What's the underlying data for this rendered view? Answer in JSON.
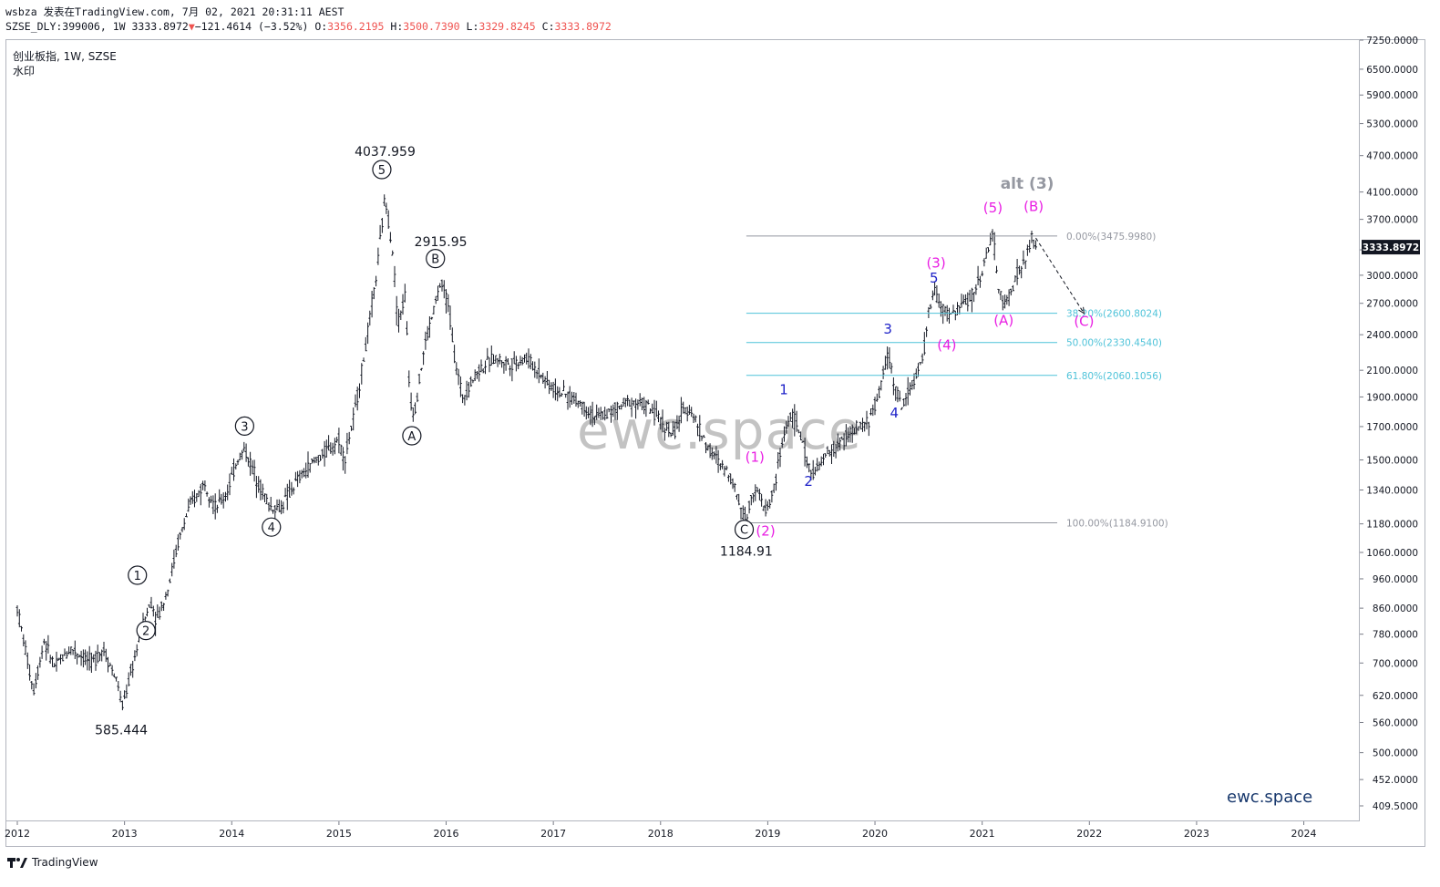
{
  "header": {
    "author": "wsbza",
    "published": "发表在TradingView.com,",
    "datetime": "7月 02, 2021 20:31:11 AEST",
    "ticker": "SZSE_DLY:399006, 1W",
    "last": "3333.8972",
    "change": "−121.4614 (−3.52%)",
    "open_label": "O:",
    "open": "3356.2195",
    "high_label": "H:",
    "high": "3500.7390",
    "low_label": "L:",
    "low": "3329.8245",
    "close_label": "C:",
    "close": "3333.8972"
  },
  "symbol": {
    "name": "创业板指, 1W, SZSE",
    "line2": "水印"
  },
  "watermark": "ewc.space",
  "corner_brand": "ewc.space",
  "footer": {
    "logo_text": "TradingView"
  },
  "colors": {
    "bars": "#131722",
    "magenta": "#e91ee3",
    "blue": "#1e22c8",
    "fib": "#4fc3d9",
    "gray": "#9598a1",
    "down": "#ef5350",
    "price_tag": "#131722"
  },
  "chart_data": {
    "type": "ohlc",
    "scale": "log",
    "title": "创业板指, 1W, SZSE",
    "ylim": [
      400,
      7600
    ],
    "y_ticks": [
      "7250.0000",
      "6500.0000",
      "5900.0000",
      "5300.0000",
      "4700.0000",
      "4100.0000",
      "3700.0000",
      "3300.0000",
      "3000.0000",
      "2700.0000",
      "2400.0000",
      "2100.0000",
      "1900.0000",
      "1700.0000",
      "1500.0000",
      "1340.0000",
      "1180.0000",
      "1060.0000",
      "960.0000",
      "860.0000",
      "780.0000",
      "700.0000",
      "620.0000",
      "560.0000",
      "500.0000",
      "452.0000",
      "409.5000"
    ],
    "y_tick_values": [
      7250,
      6500,
      5900,
      5300,
      4700,
      4100,
      3700,
      3300,
      3000,
      2700,
      2400,
      2100,
      1900,
      1700,
      1500,
      1340,
      1180,
      1060,
      960,
      860,
      780,
      700,
      620,
      560,
      500,
      452,
      409.5
    ],
    "x_ticks": [
      "2012",
      "2013",
      "2014",
      "2015",
      "2016",
      "2017",
      "2018",
      "2019",
      "2020",
      "2021",
      "2022",
      "2023",
      "2024"
    ],
    "x_tick_years": [
      2012,
      2013,
      2014,
      2015,
      2016,
      2017,
      2018,
      2019,
      2020,
      2021,
      2022,
      2023,
      2024
    ],
    "last_price": 3333.8972,
    "price_path": [
      [
        2012.0,
        860
      ],
      [
        2012.1,
        700
      ],
      [
        2012.15,
        630
      ],
      [
        2012.25,
        760
      ],
      [
        2012.35,
        690
      ],
      [
        2012.5,
        740
      ],
      [
        2012.7,
        700
      ],
      [
        2012.8,
        740
      ],
      [
        2012.95,
        640
      ],
      [
        2012.97,
        585
      ],
      [
        2013.1,
        720
      ],
      [
        2013.18,
        820
      ],
      [
        2013.25,
        880
      ],
      [
        2013.3,
        820
      ],
      [
        2013.4,
        920
      ],
      [
        2013.5,
        1100
      ],
      [
        2013.6,
        1250
      ],
      [
        2013.75,
        1380
      ],
      [
        2013.85,
        1250
      ],
      [
        2013.95,
        1320
      ],
      [
        2014.05,
        1500
      ],
      [
        2014.12,
        1560
      ],
      [
        2014.25,
        1380
      ],
      [
        2014.35,
        1260
      ],
      [
        2014.45,
        1250
      ],
      [
        2014.6,
        1380
      ],
      [
        2014.75,
        1480
      ],
      [
        2014.9,
        1560
      ],
      [
        2015.0,
        1620
      ],
      [
        2015.05,
        1500
      ],
      [
        2015.15,
        1800
      ],
      [
        2015.25,
        2300
      ],
      [
        2015.35,
        3000
      ],
      [
        2015.4,
        3600
      ],
      [
        2015.43,
        4037
      ],
      [
        2015.5,
        3300
      ],
      [
        2015.55,
        2500
      ],
      [
        2015.62,
        2800
      ],
      [
        2015.66,
        1900
      ],
      [
        2015.7,
        1780
      ],
      [
        2015.8,
        2300
      ],
      [
        2015.9,
        2700
      ],
      [
        2015.95,
        2916
      ],
      [
        2016.02,
        2700
      ],
      [
        2016.08,
        2200
      ],
      [
        2016.15,
        1900
      ],
      [
        2016.3,
        2100
      ],
      [
        2016.45,
        2200
      ],
      [
        2016.6,
        2150
      ],
      [
        2016.75,
        2200
      ],
      [
        2016.9,
        2050
      ],
      [
        2017.0,
        1960
      ],
      [
        2017.1,
        1920
      ],
      [
        2017.25,
        1860
      ],
      [
        2017.4,
        1760
      ],
      [
        2017.55,
        1800
      ],
      [
        2017.7,
        1870
      ],
      [
        2017.85,
        1850
      ],
      [
        2017.95,
        1780
      ],
      [
        2018.05,
        1700
      ],
      [
        2018.12,
        1640
      ],
      [
        2018.2,
        1800
      ],
      [
        2018.28,
        1820
      ],
      [
        2018.35,
        1700
      ],
      [
        2018.45,
        1560
      ],
      [
        2018.55,
        1480
      ],
      [
        2018.65,
        1420
      ],
      [
        2018.75,
        1260
      ],
      [
        2018.8,
        1190
      ],
      [
        2018.85,
        1330
      ],
      [
        2018.9,
        1350
      ],
      [
        2018.95,
        1260
      ],
      [
        2019.0,
        1250
      ],
      [
        2019.06,
        1350
      ],
      [
        2019.12,
        1550
      ],
      [
        2019.18,
        1720
      ],
      [
        2019.22,
        1780
      ],
      [
        2019.3,
        1660
      ],
      [
        2019.38,
        1450
      ],
      [
        2019.46,
        1440
      ],
      [
        2019.55,
        1530
      ],
      [
        2019.65,
        1580
      ],
      [
        2019.75,
        1650
      ],
      [
        2019.85,
        1690
      ],
      [
        2019.95,
        1740
      ],
      [
        2020.05,
        1950
      ],
      [
        2020.12,
        2260
      ],
      [
        2020.18,
        2000
      ],
      [
        2020.25,
        1820
      ],
      [
        2020.32,
        1960
      ],
      [
        2020.38,
        2040
      ],
      [
        2020.45,
        2200
      ],
      [
        2020.5,
        2600
      ],
      [
        2020.55,
        2850
      ],
      [
        2020.62,
        2650
      ],
      [
        2020.7,
        2580
      ],
      [
        2020.78,
        2650
      ],
      [
        2020.85,
        2720
      ],
      [
        2020.92,
        2800
      ],
      [
        2021.0,
        3050
      ],
      [
        2021.05,
        3300
      ],
      [
        2021.1,
        3480
      ],
      [
        2021.15,
        2900
      ],
      [
        2021.2,
        2650
      ],
      [
        2021.25,
        2780
      ],
      [
        2021.32,
        3000
      ],
      [
        2021.4,
        3150
      ],
      [
        2021.46,
        3450
      ],
      [
        2021.5,
        3333
      ]
    ],
    "fib": {
      "x_start": 2018.8,
      "x_end": 2021.7,
      "levels": [
        {
          "label": "0.00%(3475.9980)",
          "value": 3475.998,
          "color": "#9598a1"
        },
        {
          "label": "38.20%(2600.8024)",
          "value": 2600.8024,
          "color": "#4fc3d9"
        },
        {
          "label": "50.00%(2330.4540)",
          "value": 2330.454,
          "color": "#4fc3d9"
        },
        {
          "label": "61.80%(2060.1056)",
          "value": 2060.1056,
          "color": "#4fc3d9"
        },
        {
          "label": "100.00%(1184.9100)",
          "value": 1184.91,
          "color": "#9598a1"
        }
      ]
    },
    "annotations": [
      {
        "text": "585.444",
        "kind": "price",
        "x": 2012.97,
        "y": 585.444,
        "dy": 26
      },
      {
        "text": "4037.959",
        "kind": "price",
        "x": 2015.43,
        "y": 4037.959,
        "dy": -44
      },
      {
        "text": "2915.95",
        "kind": "price",
        "x": 2015.95,
        "y": 2915.95,
        "dy": -40
      },
      {
        "text": "1184.91",
        "kind": "price",
        "x": 2018.8,
        "y": 1184.91,
        "dy": 36
      },
      {
        "text": "1",
        "kind": "circle",
        "x": 2013.12,
        "y": 960,
        "dy": 0
      },
      {
        "text": "2",
        "kind": "circle",
        "x": 2013.2,
        "y": 780,
        "dy": 0
      },
      {
        "text": "3",
        "kind": "circle",
        "x": 2014.12,
        "y": 1680,
        "dy": 0
      },
      {
        "text": "4",
        "kind": "circle",
        "x": 2014.37,
        "y": 1150,
        "dy": 0
      },
      {
        "text": "5",
        "kind": "circle",
        "x": 2015.4,
        "y": 4400,
        "dy": 0
      },
      {
        "text": "B",
        "kind": "circle",
        "x": 2015.9,
        "y": 3150,
        "dy": 0
      },
      {
        "text": "A",
        "kind": "circle",
        "x": 2015.68,
        "y": 1620,
        "dy": 0
      },
      {
        "text": "C",
        "kind": "circle",
        "x": 2018.78,
        "y": 1140,
        "dy": 0
      },
      {
        "text": "(1)",
        "kind": "magenta",
        "x": 2018.88,
        "y": 1490,
        "dy": 0
      },
      {
        "text": "(2)",
        "kind": "magenta",
        "x": 2018.98,
        "y": 1130,
        "dy": 0
      },
      {
        "text": "(3)",
        "kind": "magenta",
        "x": 2020.57,
        "y": 3090,
        "dy": 0
      },
      {
        "text": "(4)",
        "kind": "magenta",
        "x": 2020.67,
        "y": 2270,
        "dy": 0
      },
      {
        "text": "(5)",
        "kind": "magenta",
        "x": 2021.1,
        "y": 3800,
        "dy": 0
      },
      {
        "text": "(B)",
        "kind": "magenta",
        "x": 2021.48,
        "y": 3820,
        "dy": 0
      },
      {
        "text": "(A)",
        "kind": "magenta",
        "x": 2021.2,
        "y": 2490,
        "dy": 0
      },
      {
        "text": "(C)",
        "kind": "magenta",
        "x": 2021.95,
        "y": 2480,
        "dy": 0
      },
      {
        "text": "1",
        "kind": "blue",
        "x": 2019.15,
        "y": 1920,
        "dy": 0
      },
      {
        "text": "2",
        "kind": "blue",
        "x": 2019.38,
        "y": 1360,
        "dy": 0
      },
      {
        "text": "3",
        "kind": "blue",
        "x": 2020.12,
        "y": 2410,
        "dy": 0
      },
      {
        "text": "4",
        "kind": "blue",
        "x": 2020.18,
        "y": 1760,
        "dy": 0
      },
      {
        "text": "5",
        "kind": "blue",
        "x": 2020.55,
        "y": 2920,
        "dy": 0
      },
      {
        "text": "alt (3)",
        "kind": "gray",
        "x": 2021.42,
        "y": 4150,
        "dy": 0
      }
    ],
    "projection": {
      "from": [
        2021.5,
        3450
      ],
      "to": [
        2021.95,
        2600
      ]
    }
  }
}
